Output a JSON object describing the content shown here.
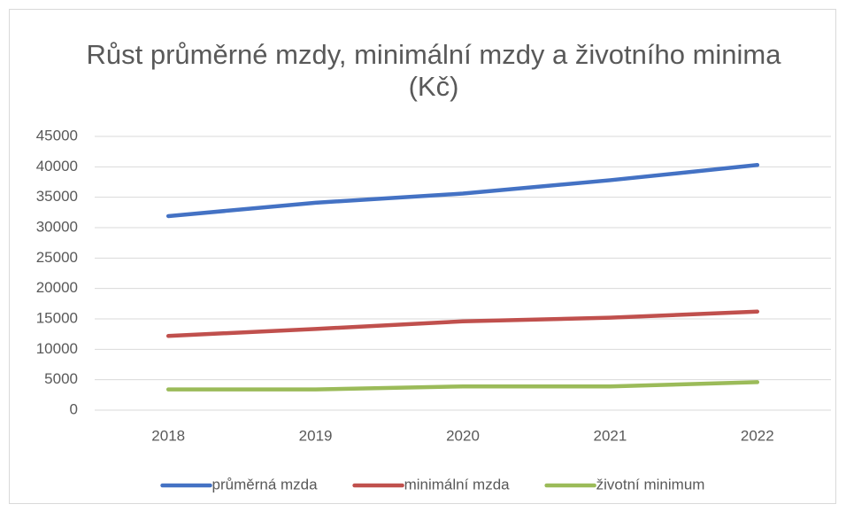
{
  "chart_data": {
    "type": "line",
    "title": "Růst průměrné mzdy, minimální mzdy a životního minima (Kč)",
    "categories": [
      "2018",
      "2019",
      "2020",
      "2021",
      "2022"
    ],
    "series": [
      {
        "name": "průměrná mzda",
        "color": "#4472c4",
        "values": [
          31900,
          34100,
          35600,
          37800,
          40300
        ]
      },
      {
        "name": "minimální mzda",
        "color": "#c0504d",
        "values": [
          12200,
          13350,
          14600,
          15200,
          16200
        ]
      },
      {
        "name": "životní minimum",
        "color": "#9bbb59",
        "values": [
          3400,
          3400,
          3900,
          3900,
          4600
        ]
      }
    ],
    "ylim": [
      0,
      45000
    ],
    "yticks": [
      0,
      5000,
      10000,
      15000,
      20000,
      25000,
      30000,
      35000,
      40000,
      45000
    ],
    "grid": true,
    "legend": "bottom"
  }
}
